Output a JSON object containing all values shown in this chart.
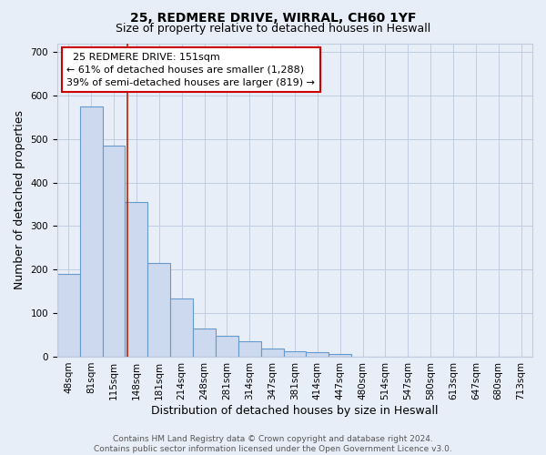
{
  "title_line1": "25, REDMERE DRIVE, WIRRAL, CH60 1YF",
  "title_line2": "Size of property relative to detached houses in Heswall",
  "xlabel": "Distribution of detached houses by size in Heswall",
  "ylabel": "Number of detached properties",
  "bin_labels": [
    "48sqm",
    "81sqm",
    "115sqm",
    "148sqm",
    "181sqm",
    "214sqm",
    "248sqm",
    "281sqm",
    "314sqm",
    "347sqm",
    "381sqm",
    "414sqm",
    "447sqm",
    "480sqm",
    "514sqm",
    "547sqm",
    "580sqm",
    "613sqm",
    "647sqm",
    "680sqm",
    "713sqm"
  ],
  "bar_heights": [
    190,
    575,
    485,
    355,
    215,
    133,
    65,
    47,
    36,
    18,
    12,
    10,
    6,
    0,
    0,
    0,
    0,
    0,
    0,
    0,
    0
  ],
  "bar_color": "#ccd9ee",
  "bar_edge_color": "#6699cc",
  "property_line_x": 3.09,
  "property_line_color": "#bb2200",
  "annotation_text": "  25 REDMERE DRIVE: 151sqm\n← 61% of detached houses are smaller (1,288)\n39% of semi-detached houses are larger (819) →",
  "annotation_box_color": "#ffffff",
  "annotation_box_edge": "#cc0000",
  "ylim": [
    0,
    720
  ],
  "yticks": [
    0,
    100,
    200,
    300,
    400,
    500,
    600,
    700
  ],
  "grid_color": "#c0cce0",
  "background_color": "#e8eef8",
  "footer_line1": "Contains HM Land Registry data © Crown copyright and database right 2024.",
  "footer_line2": "Contains public sector information licensed under the Open Government Licence v3.0.",
  "title_fontsize": 10,
  "subtitle_fontsize": 9,
  "xlabel_fontsize": 9,
  "ylabel_fontsize": 9,
  "tick_fontsize": 7.5,
  "annotation_fontsize": 8,
  "footer_fontsize": 6.5
}
